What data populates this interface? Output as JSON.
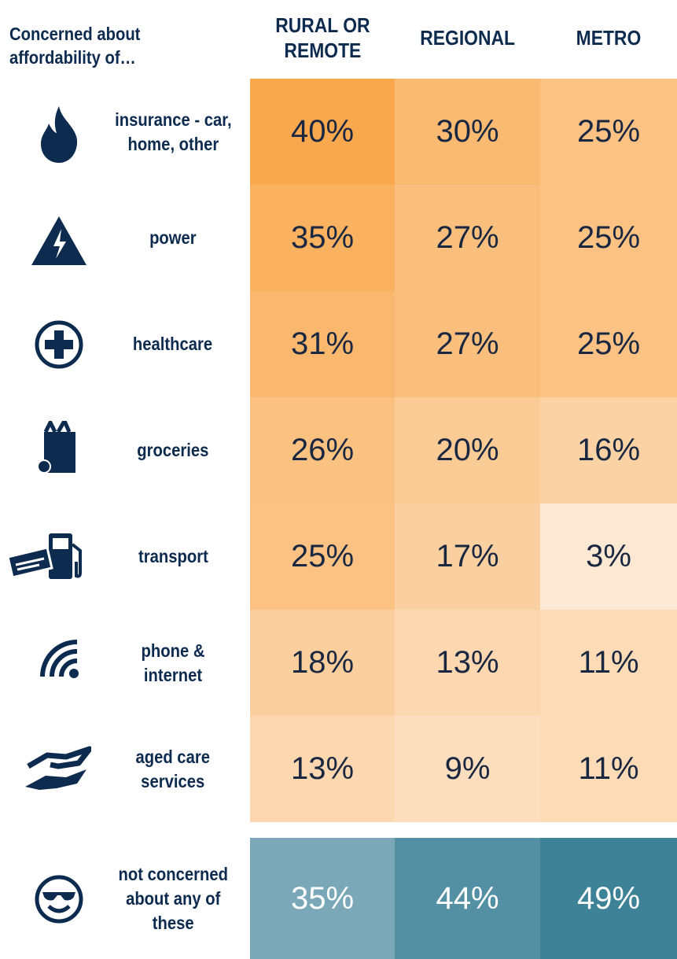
{
  "header": {
    "title": "Concerned about\naffordability of…",
    "columns": [
      "RURAL OR\nREMOTE",
      "REGIONAL",
      "METRO"
    ]
  },
  "table": {
    "rows": [
      {
        "label": "insurance - car,\nhome, other",
        "cells": [
          "40%",
          "30%",
          "25%"
        ]
      },
      {
        "label": "power",
        "cells": [
          "35%",
          "27%",
          "25%"
        ]
      },
      {
        "label": "healthcare",
        "cells": [
          "31%",
          "27%",
          "25%"
        ]
      },
      {
        "label": "groceries",
        "cells": [
          "26%",
          "20%",
          "16%"
        ]
      },
      {
        "label": "transport",
        "cells": [
          "25%",
          "17%",
          "3%"
        ]
      },
      {
        "label": "phone &\ninternet",
        "cells": [
          "18%",
          "13%",
          "11%"
        ]
      },
      {
        "label": "aged care\nservices",
        "cells": [
          "13%",
          "9%",
          "11%"
        ]
      },
      {
        "label": "not concerned\nabout any of\nthese",
        "cells": [
          "35%",
          "44%",
          "49%"
        ]
      }
    ]
  }
}
